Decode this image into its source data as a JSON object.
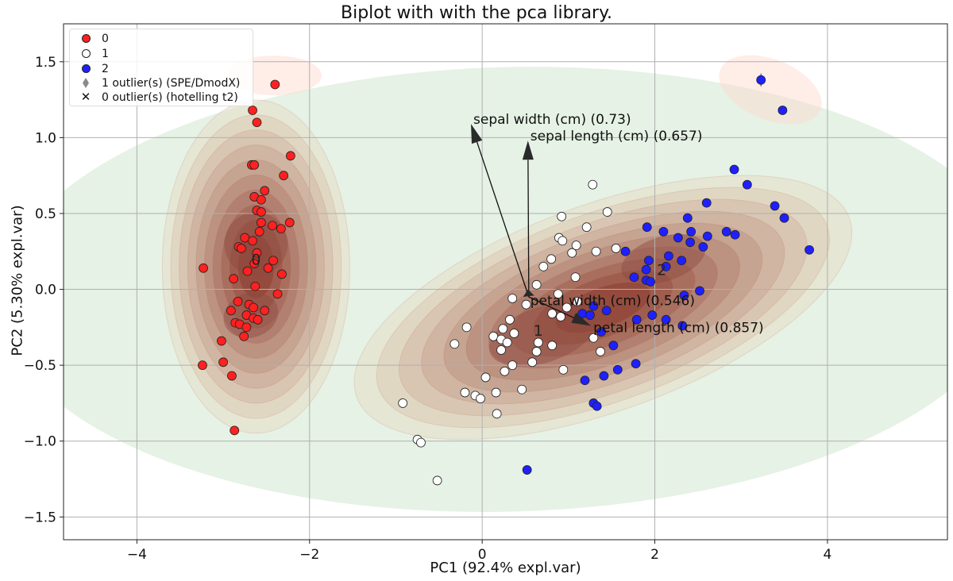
{
  "chart_data": {
    "type": "scatter",
    "title": "Biplot with with the pca library.",
    "xlabel": "PC1 (92.4% expl.var)",
    "ylabel": "PC2 (5.30% expl.var)",
    "xlim": [
      -4.85,
      5.39
    ],
    "ylim": [
      -1.65,
      1.75
    ],
    "xticks": [
      -4,
      -2,
      0,
      2,
      4
    ],
    "xtick_labels": [
      "−4",
      "−2",
      "0",
      "2",
      "4"
    ],
    "yticks": [
      1.5,
      1.0,
      0.5,
      0.0,
      -0.5,
      -1.0,
      -1.5
    ],
    "ytick_labels": [
      "1.5",
      "1.0",
      "0.5",
      "0.0",
      "−0.5",
      "−1.0",
      "−1.5"
    ],
    "grid": true,
    "legend_position": "top-left",
    "legend": [
      {
        "label": "0",
        "marker": "circle",
        "color": "#ff2020"
      },
      {
        "label": "1",
        "marker": "circle",
        "color": "#ffffff"
      },
      {
        "label": "2",
        "marker": "circle",
        "color": "#2020ff"
      },
      {
        "label": "1 outlier(s) (SPE/DmodX)",
        "marker": "diamond",
        "color": "#8a8a8a"
      },
      {
        "label": "0 outlier(s) (hotelling t2)",
        "marker": "x",
        "color": "#222222"
      }
    ],
    "series": [
      {
        "name": "0",
        "color": "#ff2020",
        "points": [
          [
            -2.4,
            1.35
          ],
          [
            -2.66,
            1.18
          ],
          [
            -2.61,
            1.1
          ],
          [
            -2.22,
            0.88
          ],
          [
            -2.67,
            0.82
          ],
          [
            -2.64,
            0.82
          ],
          [
            -2.3,
            0.75
          ],
          [
            -2.52,
            0.65
          ],
          [
            -2.64,
            0.61
          ],
          [
            -2.56,
            0.59
          ],
          [
            -2.61,
            0.52
          ],
          [
            -2.56,
            0.51
          ],
          [
            -2.56,
            0.44
          ],
          [
            -2.43,
            0.42
          ],
          [
            -2.23,
            0.44
          ],
          [
            -2.33,
            0.4
          ],
          [
            -2.58,
            0.38
          ],
          [
            -2.75,
            0.34
          ],
          [
            -2.66,
            0.32
          ],
          [
            -2.82,
            0.28
          ],
          [
            -2.79,
            0.27
          ],
          [
            -2.61,
            0.24
          ],
          [
            -2.64,
            0.17
          ],
          [
            -2.42,
            0.19
          ],
          [
            -3.23,
            0.14
          ],
          [
            -2.72,
            0.12
          ],
          [
            -2.48,
            0.14
          ],
          [
            -2.32,
            0.1
          ],
          [
            -2.88,
            0.07
          ],
          [
            -2.63,
            0.02
          ],
          [
            -2.37,
            -0.03
          ],
          [
            -2.83,
            -0.08
          ],
          [
            -2.91,
            -0.14
          ],
          [
            -2.7,
            -0.1
          ],
          [
            -2.65,
            -0.12
          ],
          [
            -2.52,
            -0.14
          ],
          [
            -2.73,
            -0.17
          ],
          [
            -2.65,
            -0.19
          ],
          [
            -2.6,
            -0.2
          ],
          [
            -2.86,
            -0.22
          ],
          [
            -2.81,
            -0.23
          ],
          [
            -2.73,
            -0.25
          ],
          [
            -2.76,
            -0.31
          ],
          [
            -3.02,
            -0.34
          ],
          [
            -3.24,
            -0.5
          ],
          [
            -3.0,
            -0.48
          ],
          [
            -2.9,
            -0.57
          ],
          [
            -2.87,
            -0.93
          ]
        ]
      },
      {
        "name": "1",
        "color": "#ffffff",
        "points": [
          [
            1.28,
            0.69
          ],
          [
            1.45,
            0.51
          ],
          [
            0.92,
            0.48
          ],
          [
            1.21,
            0.41
          ],
          [
            0.89,
            0.34
          ],
          [
            0.93,
            0.32
          ],
          [
            1.09,
            0.29
          ],
          [
            1.04,
            0.24
          ],
          [
            1.32,
            0.25
          ],
          [
            1.55,
            0.27
          ],
          [
            0.8,
            0.2
          ],
          [
            0.71,
            0.15
          ],
          [
            1.08,
            0.08
          ],
          [
            0.63,
            0.03
          ],
          [
            0.88,
            -0.03
          ],
          [
            1.1,
            -0.08
          ],
          [
            0.35,
            -0.06
          ],
          [
            0.51,
            -0.1
          ],
          [
            0.98,
            -0.12
          ],
          [
            0.81,
            -0.16
          ],
          [
            0.91,
            -0.18
          ],
          [
            0.32,
            -0.2
          ],
          [
            -0.18,
            -0.25
          ],
          [
            0.24,
            -0.26
          ],
          [
            0.37,
            -0.29
          ],
          [
            0.13,
            -0.31
          ],
          [
            0.22,
            -0.33
          ],
          [
            0.29,
            -0.35
          ],
          [
            0.65,
            -0.35
          ],
          [
            0.81,
            -0.37
          ],
          [
            1.29,
            -0.32
          ],
          [
            -0.32,
            -0.36
          ],
          [
            0.22,
            -0.4
          ],
          [
            0.63,
            -0.41
          ],
          [
            1.37,
            -0.41
          ],
          [
            0.58,
            -0.48
          ],
          [
            0.35,
            -0.5
          ],
          [
            0.26,
            -0.54
          ],
          [
            0.94,
            -0.53
          ],
          [
            0.04,
            -0.58
          ],
          [
            -0.2,
            -0.68
          ],
          [
            -0.08,
            -0.7
          ],
          [
            -0.02,
            -0.72
          ],
          [
            0.16,
            -0.68
          ],
          [
            0.46,
            -0.66
          ],
          [
            -0.92,
            -0.75
          ],
          [
            0.17,
            -0.82
          ],
          [
            -0.75,
            -0.99
          ],
          [
            -0.71,
            -1.01
          ],
          [
            -0.52,
            -1.26
          ]
        ]
      },
      {
        "name": "2",
        "color": "#2020ff",
        "points": [
          [
            3.23,
            1.38
          ],
          [
            3.48,
            1.18
          ],
          [
            2.92,
            0.79
          ],
          [
            3.07,
            0.69
          ],
          [
            2.6,
            0.57
          ],
          [
            3.39,
            0.55
          ],
          [
            3.5,
            0.47
          ],
          [
            2.38,
            0.47
          ],
          [
            1.91,
            0.41
          ],
          [
            2.1,
            0.38
          ],
          [
            2.42,
            0.38
          ],
          [
            2.27,
            0.34
          ],
          [
            2.61,
            0.35
          ],
          [
            2.83,
            0.38
          ],
          [
            2.93,
            0.36
          ],
          [
            2.41,
            0.31
          ],
          [
            2.56,
            0.28
          ],
          [
            1.66,
            0.25
          ],
          [
            3.79,
            0.26
          ],
          [
            2.16,
            0.22
          ],
          [
            1.93,
            0.19
          ],
          [
            2.31,
            0.19
          ],
          [
            1.9,
            0.13
          ],
          [
            2.13,
            0.15
          ],
          [
            1.76,
            0.08
          ],
          [
            1.9,
            0.06
          ],
          [
            1.95,
            0.05
          ],
          [
            2.52,
            -0.01
          ],
          [
            2.34,
            -0.04
          ],
          [
            1.29,
            -0.11
          ],
          [
            1.44,
            -0.14
          ],
          [
            1.16,
            -0.16
          ],
          [
            1.25,
            -0.17
          ],
          [
            1.97,
            -0.17
          ],
          [
            1.79,
            -0.2
          ],
          [
            2.13,
            -0.2
          ],
          [
            2.32,
            -0.24
          ],
          [
            1.38,
            -0.28
          ],
          [
            1.52,
            -0.37
          ],
          [
            1.78,
            -0.49
          ],
          [
            1.57,
            -0.53
          ],
          [
            1.41,
            -0.57
          ],
          [
            1.19,
            -0.6
          ],
          [
            1.29,
            -0.75
          ],
          [
            1.33,
            -0.77
          ],
          [
            0.52,
            -1.19
          ]
        ]
      }
    ],
    "outliers_spe": [
      [
        3.23,
        1.38
      ]
    ],
    "cluster_labels": [
      {
        "text": "0",
        "x": -2.62,
        "y": 0.2
      },
      {
        "text": "1",
        "x": 0.65,
        "y": -0.27
      },
      {
        "text": "2",
        "x": 2.08,
        "y": 0.13
      }
    ],
    "loadings": {
      "origin": [
        0.54,
        -0.05
      ],
      "arrows": [
        {
          "label": "sepal width (cm) (0.73)",
          "tip": [
            -0.13,
            1.09
          ]
        },
        {
          "label": "sepal length (cm) (0.657)",
          "tip": [
            0.53,
            0.98
          ]
        },
        {
          "label": "petal width (cm) (0.546)",
          "tip": [
            0.53,
            0.0
          ]
        },
        {
          "label": "petal length (cm) (0.857)",
          "tip": [
            1.26,
            -0.24
          ]
        }
      ]
    },
    "hotelling_ellipse_color": "#cfe8cf",
    "contour_colors": [
      "#e6dcc6",
      "#8c3c30"
    ]
  }
}
